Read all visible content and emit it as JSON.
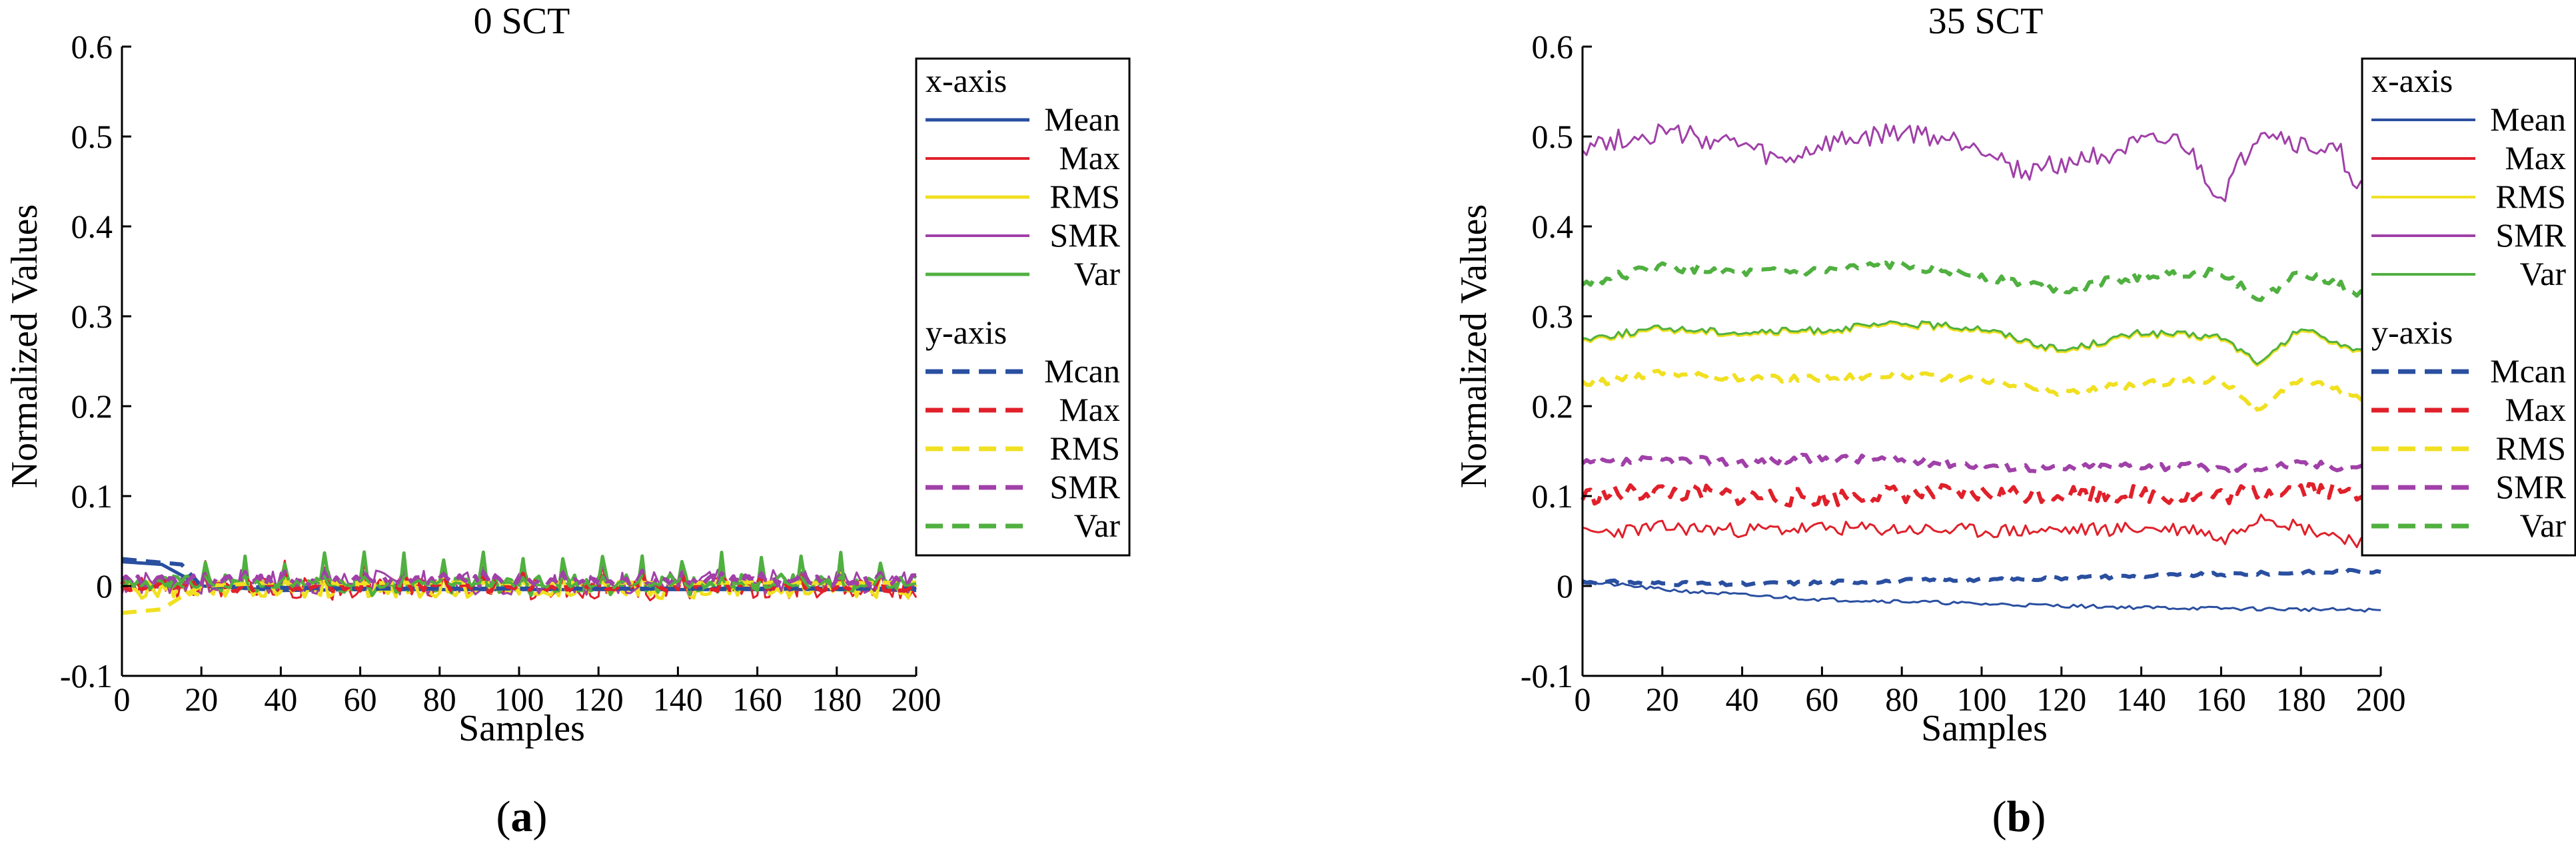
{
  "chart_data": [
    {
      "type": "line",
      "panel_label": "a",
      "title": "0 SCT",
      "xlabel": "Samples",
      "ylabel": "Normalized Values",
      "xlim": [
        0,
        200
      ],
      "ylim": [
        -0.1,
        0.6
      ],
      "xticks": [
        "0",
        "20",
        "40",
        "60",
        "80",
        "100",
        "120",
        "140",
        "160",
        "180",
        "200"
      ],
      "yticks": [
        "-0.1",
        "0",
        "0.1",
        "0.2",
        "0.3",
        "0.4",
        "0.5",
        "0.6"
      ],
      "legend": {
        "position": "top-right",
        "groups": [
          {
            "title": "x-axis",
            "entries": [
              "Mean",
              "Max",
              "RMS",
              "SMR",
              "Var"
            ]
          },
          {
            "title": "y-axis",
            "entries": [
              "Mcan",
              "Max",
              "RMS",
              "SMR",
              "Var"
            ]
          }
        ]
      },
      "series": [
        {
          "name": "x-axis Mean",
          "color": "#2a4fa0",
          "style": "solid",
          "width": 5,
          "x": [
            0,
            10,
            20,
            40,
            60,
            80,
            100,
            120,
            140,
            160,
            180,
            200
          ],
          "y": [
            0.027,
            0.024,
            0.0,
            -0.005,
            -0.004,
            -0.004,
            -0.004,
            -0.004,
            -0.004,
            -0.004,
            -0.004,
            -0.005
          ],
          "pattern": "flat"
        },
        {
          "name": "x-axis Max",
          "color": "#e0202a",
          "style": "solid",
          "width": 3,
          "base": -0.002,
          "amp": 0.035,
          "noise": 0.012,
          "pattern": "spikes",
          "seed": 3
        },
        {
          "name": "x-axis RMS",
          "color": "#f0e020",
          "style": "solid",
          "width": 5,
          "base": -0.004,
          "amp": 0.02,
          "noise": 0.01,
          "pattern": "spikes",
          "seed": 5
        },
        {
          "name": "x-axis SMR",
          "color": "#a040a8",
          "style": "solid",
          "width": 3,
          "base": 0.004,
          "amp": 0.018,
          "noise": 0.014,
          "pattern": "spikes",
          "seed": 7
        },
        {
          "name": "x-axis Var",
          "color": "#50b040",
          "style": "solid",
          "width": 5,
          "base": 0.003,
          "amp": 0.035,
          "noise": 0.01,
          "pattern": "spikes",
          "seed": 9
        },
        {
          "name": "y-axis Mcan",
          "color": "#2a4fa0",
          "style": "dashed",
          "width": 6,
          "x": [
            0,
            5,
            10,
            15,
            20,
            40,
            60,
            80,
            100,
            120,
            140,
            160,
            180,
            200
          ],
          "y": [
            0.03,
            0.028,
            0.026,
            0.024,
            0.0,
            -0.002,
            -0.003,
            -0.003,
            -0.003,
            -0.003,
            -0.003,
            -0.003,
            -0.003,
            -0.003
          ],
          "pattern": "flat"
        },
        {
          "name": "y-axis Max",
          "color": "#e0202a",
          "style": "dashed",
          "width": 6,
          "base": 0.0,
          "amp": 0.015,
          "noise": 0.006,
          "pattern": "spikes",
          "seed": 11
        },
        {
          "name": "y-axis RMS",
          "color": "#f0e020",
          "style": "dashed",
          "width": 6,
          "x": [
            0,
            5,
            10,
            15,
            20,
            40,
            60,
            80,
            100,
            120,
            140,
            160,
            180,
            200
          ],
          "y": [
            -0.03,
            -0.028,
            -0.026,
            -0.012,
            0.0,
            0.004,
            0.003,
            0.004,
            0.003,
            0.004,
            0.003,
            0.004,
            0.003,
            0.004
          ],
          "pattern": "flat"
        },
        {
          "name": "y-axis SMR",
          "color": "#a040a8",
          "style": "dashed",
          "width": 6,
          "base": 0.006,
          "amp": 0.012,
          "noise": 0.006,
          "pattern": "spikes",
          "seed": 13
        },
        {
          "name": "y-axis Var",
          "color": "#50b040",
          "style": "dashed",
          "width": 4,
          "base": 0.002,
          "amp": 0.01,
          "noise": 0.004,
          "pattern": "spikes",
          "seed": 15
        }
      ]
    },
    {
      "type": "line",
      "panel_label": "b",
      "title": "35 SCT",
      "xlabel": "Samples",
      "ylabel": "Normalized Values",
      "xlim": [
        0,
        200
      ],
      "ylim": [
        -0.1,
        0.6
      ],
      "xticks": [
        "0",
        "20",
        "40",
        "60",
        "80",
        "100",
        "120",
        "140",
        "160",
        "180",
        "200"
      ],
      "yticks": [
        "-0.1",
        "0",
        "0.1",
        "0.2",
        "0.3",
        "0.4",
        "0.5",
        "0.6"
      ],
      "legend": {
        "position": "top-right",
        "groups": [
          {
            "title": "x-axis",
            "entries": [
              "Mean",
              "Max",
              "RMS",
              "SMR",
              "Var"
            ]
          },
          {
            "title": "y-axis",
            "entries": [
              "Mcan",
              "Max",
              "RMS",
              "SMR",
              "Var"
            ]
          }
        ]
      },
      "series": [
        {
          "name": "x-axis Mean",
          "color": "#2a4fa0",
          "style": "solid",
          "width": 3,
          "x": [
            0,
            10,
            20,
            40,
            60,
            80,
            100,
            120,
            140,
            160,
            180,
            200
          ],
          "y": [
            0.004,
            0.001,
            -0.004,
            -0.01,
            -0.015,
            -0.017,
            -0.02,
            -0.022,
            -0.024,
            -0.025,
            -0.026,
            -0.027
          ],
          "pattern": "noisy",
          "noise": 0.002,
          "seed": 21
        },
        {
          "name": "x-axis Max",
          "color": "#e0202a",
          "style": "solid",
          "width": 3,
          "x": [
            0,
            20,
            40,
            60,
            80,
            100,
            120,
            140,
            155,
            160,
            170,
            180,
            195,
            200
          ],
          "y": [
            0.058,
            0.065,
            0.062,
            0.064,
            0.063,
            0.061,
            0.062,
            0.064,
            0.063,
            0.05,
            0.08,
            0.065,
            0.05,
            0.048
          ],
          "pattern": "noisy",
          "noise": 0.008,
          "seed": 23
        },
        {
          "name": "x-axis RMS",
          "color": "#f0e020",
          "style": "solid",
          "width": 3,
          "x": [
            0,
            20,
            40,
            60,
            80,
            100,
            120,
            140,
            160,
            170,
            180,
            200
          ],
          "y": [
            0.273,
            0.285,
            0.28,
            0.283,
            0.29,
            0.285,
            0.26,
            0.28,
            0.275,
            0.245,
            0.285,
            0.25
          ],
          "pattern": "noisy",
          "noise": 0.004,
          "seed": 25
        },
        {
          "name": "x-axis SMR",
          "color": "#a040a8",
          "style": "solid",
          "width": 3,
          "x": [
            0,
            20,
            40,
            50,
            60,
            80,
            100,
            110,
            120,
            140,
            150,
            160,
            170,
            180,
            190,
            195,
            200
          ],
          "y": [
            0.49,
            0.505,
            0.49,
            0.47,
            0.49,
            0.505,
            0.49,
            0.46,
            0.47,
            0.49,
            0.495,
            0.43,
            0.51,
            0.49,
            0.48,
            0.44,
            0.44
          ],
          "pattern": "noisy",
          "noise": 0.012,
          "seed": 27
        },
        {
          "name": "x-axis Var",
          "color": "#50b040",
          "style": "solid",
          "width": 3,
          "x": [
            0,
            20,
            40,
            60,
            80,
            100,
            120,
            140,
            160,
            170,
            180,
            200
          ],
          "y": [
            0.275,
            0.287,
            0.282,
            0.285,
            0.292,
            0.287,
            0.262,
            0.282,
            0.277,
            0.247,
            0.287,
            0.252
          ],
          "pattern": "noisy",
          "noise": 0.004,
          "seed": 25
        },
        {
          "name": "y-axis Mcan",
          "color": "#2a4fa0",
          "style": "dashed",
          "width": 6,
          "x": [
            0,
            20,
            40,
            60,
            80,
            100,
            120,
            140,
            160,
            180,
            200
          ],
          "y": [
            0.005,
            0.003,
            0.002,
            0.004,
            0.006,
            0.007,
            0.009,
            0.011,
            0.013,
            0.015,
            0.017
          ],
          "pattern": "noisy",
          "noise": 0.002,
          "seed": 31
        },
        {
          "name": "y-axis Max",
          "color": "#e0202a",
          "style": "dashed",
          "width": 6,
          "x": [
            0,
            20,
            40,
            60,
            80,
            100,
            120,
            140,
            160,
            180,
            200
          ],
          "y": [
            0.1,
            0.105,
            0.1,
            0.098,
            0.103,
            0.102,
            0.103,
            0.102,
            0.1,
            0.11,
            0.1
          ],
          "pattern": "noisy",
          "noise": 0.01,
          "seed": 33
        },
        {
          "name": "y-axis RMS",
          "color": "#f0e020",
          "style": "dashed",
          "width": 6,
          "x": [
            0,
            20,
            40,
            60,
            80,
            100,
            120,
            140,
            160,
            170,
            180,
            200
          ],
          "y": [
            0.224,
            0.238,
            0.23,
            0.232,
            0.235,
            0.228,
            0.215,
            0.225,
            0.23,
            0.195,
            0.232,
            0.2
          ],
          "pattern": "noisy",
          "noise": 0.004,
          "seed": 35
        },
        {
          "name": "y-axis SMR",
          "color": "#a040a8",
          "style": "dashed",
          "width": 6,
          "x": [
            0,
            20,
            40,
            60,
            80,
            100,
            120,
            140,
            160,
            180,
            200
          ],
          "y": [
            0.135,
            0.14,
            0.138,
            0.142,
            0.14,
            0.135,
            0.13,
            0.135,
            0.13,
            0.135,
            0.132
          ],
          "pattern": "noisy",
          "noise": 0.005,
          "seed": 37
        },
        {
          "name": "y-axis Var",
          "color": "#50b040",
          "style": "dashed",
          "width": 6,
          "x": [
            0,
            20,
            40,
            60,
            80,
            100,
            120,
            140,
            160,
            170,
            180,
            200
          ],
          "y": [
            0.337,
            0.355,
            0.348,
            0.35,
            0.358,
            0.345,
            0.33,
            0.345,
            0.35,
            0.318,
            0.35,
            0.318
          ],
          "pattern": "noisy",
          "noise": 0.005,
          "seed": 39
        }
      ]
    }
  ]
}
